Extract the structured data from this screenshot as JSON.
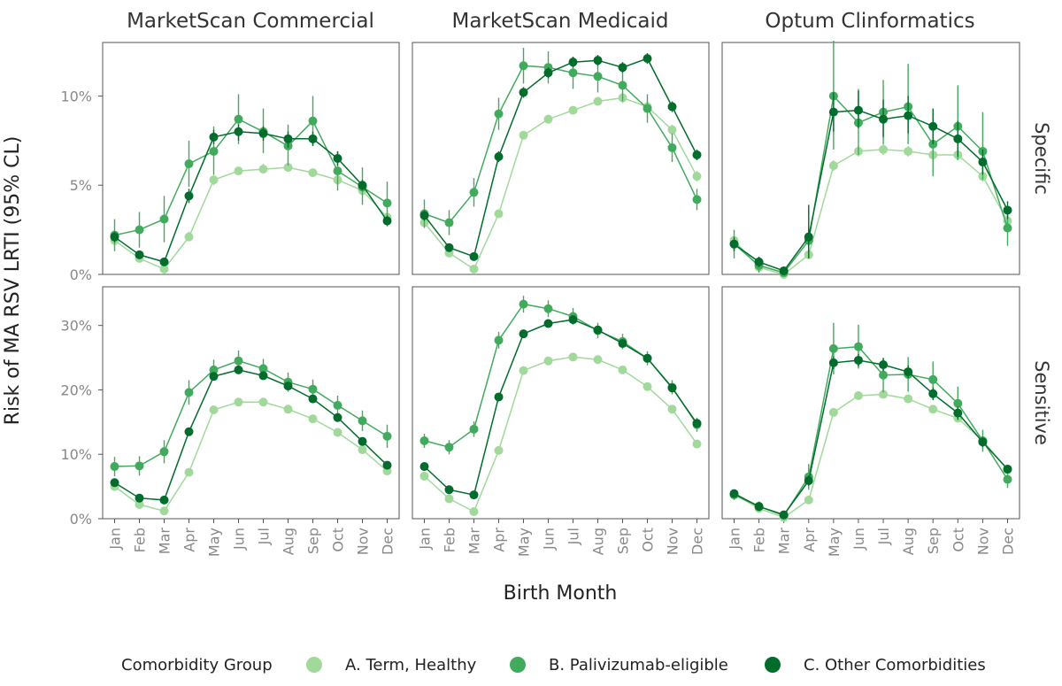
{
  "chart_data": {
    "type": "line",
    "facet_columns": [
      "MarketScan Commercial",
      "MarketScan Medicaid",
      "Optum Clinformatics"
    ],
    "facet_rows": [
      "Specific",
      "Sensitive"
    ],
    "x": [
      "Jan",
      "Feb",
      "Mar",
      "Apr",
      "May",
      "Jun",
      "Jul",
      "Aug",
      "Sep",
      "Oct",
      "Nov",
      "Dec"
    ],
    "xlabel": "Birth Month",
    "ylabel": "Risk of MA RSV LRTI (95% CL)",
    "ylim_specific": [
      0,
      13
    ],
    "ylim_sensitive": [
      0,
      36
    ],
    "yticks_specific": [
      "0%",
      "5%",
      "10%"
    ],
    "yticks_sensitive": [
      "0%",
      "10%",
      "20%",
      "30%"
    ],
    "legend": {
      "title": "Comorbidity Group",
      "position": "bottom",
      "items": [
        {
          "label": "A. Term, Healthy",
          "color": "#a1d99b"
        },
        {
          "label": "B. Palivizumab-eligible",
          "color": "#41ab5d"
        },
        {
          "label": "C. Other Comorbidities",
          "color": "#006d2c"
        }
      ]
    },
    "panels": [
      {
        "column": "MarketScan Commercial",
        "row": "Specific",
        "series": [
          {
            "values": [
              1.9,
              0.9,
              0.3,
              2.1,
              5.3,
              5.8,
              5.9,
              6.0,
              5.7,
              5.3,
              4.7,
              3.2
            ],
            "lower": [
              1.6,
              0.7,
              0.2,
              1.9,
              5.0,
              5.6,
              5.7,
              5.8,
              5.5,
              5.0,
              4.4,
              2.9
            ],
            "upper": [
              2.2,
              1.1,
              0.5,
              2.4,
              5.6,
              6.0,
              6.2,
              6.3,
              5.9,
              5.5,
              5.0,
              3.5
            ]
          },
          {
            "values": [
              2.2,
              2.5,
              3.1,
              6.2,
              6.9,
              8.7,
              8.0,
              7.2,
              8.6,
              5.8,
              4.9,
              4.0
            ],
            "lower": [
              1.3,
              1.5,
              1.8,
              4.9,
              5.6,
              7.3,
              6.8,
              6.1,
              7.2,
              4.7,
              3.9,
              2.8
            ],
            "upper": [
              3.1,
              3.5,
              4.4,
              7.5,
              8.3,
              10.1,
              9.3,
              8.4,
              10.0,
              6.9,
              6.0,
              5.2
            ]
          },
          {
            "values": [
              2.1,
              1.1,
              0.7,
              4.4,
              7.7,
              8.0,
              7.9,
              7.6,
              7.6,
              6.5,
              5.0,
              3.0
            ],
            "lower": [
              1.8,
              0.9,
              0.5,
              4.0,
              7.3,
              7.5,
              7.5,
              7.1,
              7.2,
              6.1,
              4.7,
              2.7
            ],
            "upper": [
              2.4,
              1.3,
              0.9,
              4.8,
              8.1,
              8.4,
              8.3,
              8.0,
              8.0,
              6.9,
              5.3,
              3.3
            ]
          }
        ]
      },
      {
        "column": "MarketScan Medicaid",
        "row": "Specific",
        "series": [
          {
            "values": [
              2.9,
              1.2,
              0.3,
              3.4,
              7.8,
              8.7,
              9.2,
              9.7,
              9.9,
              9.4,
              8.1,
              5.5
            ],
            "lower": [
              2.7,
              1.1,
              0.2,
              3.2,
              7.6,
              8.5,
              9.0,
              9.5,
              9.6,
              9.1,
              7.8,
              5.2
            ],
            "upper": [
              3.1,
              1.4,
              0.4,
              3.6,
              8.0,
              8.9,
              9.4,
              9.9,
              10.2,
              9.7,
              8.4,
              5.8
            ]
          },
          {
            "values": [
              3.4,
              2.9,
              4.6,
              9.0,
              11.7,
              11.6,
              11.3,
              11.1,
              10.6,
              9.3,
              7.1,
              4.2
            ],
            "lower": [
              2.6,
              2.2,
              3.8,
              8.1,
              10.7,
              10.7,
              10.4,
              10.2,
              9.7,
              8.5,
              6.3,
              3.6
            ],
            "upper": [
              4.2,
              3.6,
              5.4,
              9.9,
              12.7,
              12.5,
              12.2,
              12.0,
              11.5,
              10.1,
              7.9,
              4.8
            ]
          },
          {
            "values": [
              3.3,
              1.5,
              1.0,
              6.6,
              10.2,
              11.3,
              11.9,
              12.0,
              11.6,
              12.1,
              9.4,
              6.7
            ],
            "lower": [
              3.0,
              1.3,
              0.8,
              6.3,
              9.9,
              11.0,
              11.6,
              11.7,
              11.3,
              11.8,
              9.1,
              6.4
            ],
            "upper": [
              3.6,
              1.7,
              1.2,
              6.9,
              10.5,
              11.6,
              12.2,
              12.3,
              11.9,
              12.4,
              9.7,
              7.0
            ]
          }
        ]
      },
      {
        "column": "Optum Clinformatics",
        "row": "Specific",
        "series": [
          {
            "values": [
              1.9,
              0.4,
              0.0,
              1.1,
              6.1,
              6.9,
              7.0,
              6.9,
              6.7,
              6.7,
              5.5,
              3.0
            ],
            "lower": [
              1.6,
              0.3,
              0.0,
              0.9,
              5.8,
              6.6,
              6.7,
              6.6,
              6.4,
              6.4,
              5.2,
              2.7
            ],
            "upper": [
              2.2,
              0.5,
              0.1,
              1.3,
              6.4,
              7.2,
              7.3,
              7.2,
              7.0,
              7.0,
              5.8,
              3.3
            ]
          },
          {
            "values": [
              1.7,
              0.5,
              0.1,
              1.9,
              10.0,
              8.5,
              9.1,
              9.4,
              7.3,
              8.3,
              6.9,
              2.6
            ],
            "lower": [
              0.9,
              0.1,
              0.0,
              1.2,
              7.0,
              6.7,
              7.3,
              7.3,
              5.5,
              6.4,
              5.3,
              1.6
            ],
            "upper": [
              2.5,
              0.9,
              0.3,
              2.7,
              13.1,
              10.4,
              10.9,
              11.8,
              9.1,
              10.6,
              9.1,
              3.6
            ]
          },
          {
            "values": [
              1.7,
              0.7,
              0.2,
              2.1,
              9.1,
              9.2,
              8.7,
              8.9,
              8.3,
              7.6,
              6.3,
              3.6
            ],
            "lower": [
              1.3,
              0.4,
              0.1,
              0.9,
              8.0,
              8.2,
              7.7,
              7.9,
              7.3,
              6.6,
              5.6,
              3.1
            ],
            "upper": [
              2.1,
              1.0,
              0.4,
              3.9,
              10.2,
              10.3,
              9.8,
              10.0,
              9.3,
              8.6,
              7.0,
              4.1
            ]
          }
        ]
      },
      {
        "column": "MarketScan Commercial",
        "row": "Sensitive",
        "series": [
          {
            "values": [
              5.0,
              2.2,
              1.2,
              7.2,
              16.9,
              18.1,
              18.1,
              17.0,
              15.5,
              13.4,
              10.7,
              7.4
            ],
            "lower": [
              4.6,
              1.9,
              1.0,
              6.8,
              16.5,
              17.7,
              17.7,
              16.6,
              15.1,
              13.0,
              10.3,
              7.0
            ],
            "upper": [
              5.4,
              2.5,
              1.4,
              7.6,
              17.3,
              18.5,
              18.5,
              17.4,
              15.9,
              13.8,
              11.1,
              7.8
            ]
          },
          {
            "values": [
              8.1,
              8.2,
              10.4,
              19.6,
              23.1,
              24.5,
              23.3,
              21.2,
              20.1,
              17.6,
              15.2,
              12.8
            ],
            "lower": [
              6.6,
              6.7,
              8.6,
              17.7,
              21.5,
              22.9,
              21.8,
              19.7,
              18.6,
              16.1,
              13.6,
              11.0
            ],
            "upper": [
              9.6,
              9.7,
              12.2,
              21.5,
              24.7,
              26.1,
              24.8,
              22.7,
              21.6,
              19.1,
              16.8,
              14.6
            ]
          },
          {
            "values": [
              5.6,
              3.2,
              2.9,
              13.5,
              22.1,
              23.1,
              22.2,
              20.6,
              18.6,
              15.7,
              12.0,
              8.3
            ],
            "lower": [
              5.2,
              2.9,
              2.6,
              13.0,
              21.6,
              22.6,
              21.7,
              20.1,
              18.1,
              15.3,
              11.6,
              7.9
            ],
            "upper": [
              6.0,
              3.5,
              3.2,
              14.0,
              22.6,
              23.6,
              22.7,
              21.1,
              19.1,
              16.1,
              12.4,
              8.7
            ]
          }
        ]
      },
      {
        "column": "MarketScan Medicaid",
        "row": "Sensitive",
        "series": [
          {
            "values": [
              6.6,
              3.1,
              1.1,
              10.6,
              23.0,
              24.5,
              25.1,
              24.7,
              23.1,
              20.5,
              17.0,
              11.6
            ],
            "lower": [
              6.3,
              2.8,
              0.9,
              10.2,
              22.6,
              24.1,
              24.7,
              24.3,
              22.7,
              20.1,
              16.6,
              11.2
            ],
            "upper": [
              6.9,
              3.4,
              1.3,
              11.0,
              23.4,
              24.9,
              25.5,
              25.1,
              23.5,
              20.9,
              17.4,
              12.0
            ]
          },
          {
            "values": [
              12.1,
              11.1,
              13.9,
              27.7,
              33.3,
              32.6,
              31.4,
              29.2,
              27.5,
              24.9,
              20.4,
              14.6
            ],
            "lower": [
              11.0,
              10.0,
              12.7,
              26.4,
              32.0,
              31.3,
              30.1,
              28.0,
              26.3,
              23.8,
              19.3,
              13.5
            ],
            "upper": [
              13.2,
              12.2,
              15.1,
              29.0,
              34.6,
              33.9,
              32.7,
              30.4,
              28.7,
              26.0,
              21.5,
              15.7
            ]
          },
          {
            "values": [
              8.1,
              4.5,
              3.7,
              18.9,
              28.7,
              30.3,
              30.9,
              29.3,
              27.2,
              24.9,
              20.3,
              14.8
            ],
            "lower": [
              7.7,
              4.2,
              3.4,
              18.4,
              28.2,
              29.8,
              30.4,
              28.8,
              26.7,
              24.4,
              19.8,
              14.3
            ],
            "upper": [
              8.5,
              4.8,
              4.0,
              19.4,
              29.2,
              30.8,
              31.4,
              29.8,
              27.7,
              25.4,
              20.8,
              15.3
            ]
          }
        ]
      },
      {
        "column": "Optum Clinformatics",
        "row": "Sensitive",
        "series": [
          {
            "values": [
              3.8,
              1.6,
              0.2,
              2.9,
              16.5,
              19.1,
              19.3,
              18.6,
              17.0,
              15.6,
              12.1,
              7.6
            ],
            "lower": [
              3.5,
              1.3,
              0.1,
              2.6,
              16.1,
              18.7,
              18.9,
              18.2,
              16.6,
              15.2,
              11.7,
              7.2
            ],
            "upper": [
              4.1,
              1.9,
              0.3,
              3.2,
              16.9,
              19.5,
              19.7,
              19.0,
              17.4,
              16.0,
              12.5,
              8.0
            ]
          },
          {
            "values": [
              3.7,
              1.9,
              0.5,
              6.5,
              26.4,
              26.7,
              22.3,
              22.4,
              21.6,
              17.9,
              12.1,
              6.1
            ],
            "lower": [
              2.9,
              1.1,
              0.1,
              4.5,
              22.4,
              23.3,
              19.6,
              19.7,
              18.8,
              15.3,
              10.4,
              4.8
            ],
            "upper": [
              4.5,
              2.7,
              0.9,
              8.5,
              30.4,
              30.1,
              25.0,
              25.1,
              24.4,
              20.5,
              13.8,
              7.4
            ]
          },
          {
            "values": [
              3.9,
              1.9,
              0.6,
              5.9,
              24.2,
              24.6,
              23.9,
              22.8,
              19.4,
              16.4,
              11.9,
              7.7
            ],
            "lower": [
              3.4,
              1.5,
              0.3,
              5.1,
              23.2,
              23.6,
              22.9,
              21.8,
              18.4,
              15.4,
              11.1,
              7.1
            ],
            "upper": [
              4.4,
              2.3,
              0.9,
              6.7,
              25.2,
              25.6,
              24.9,
              23.8,
              20.4,
              17.4,
              12.7,
              8.3
            ]
          }
        ]
      }
    ]
  }
}
